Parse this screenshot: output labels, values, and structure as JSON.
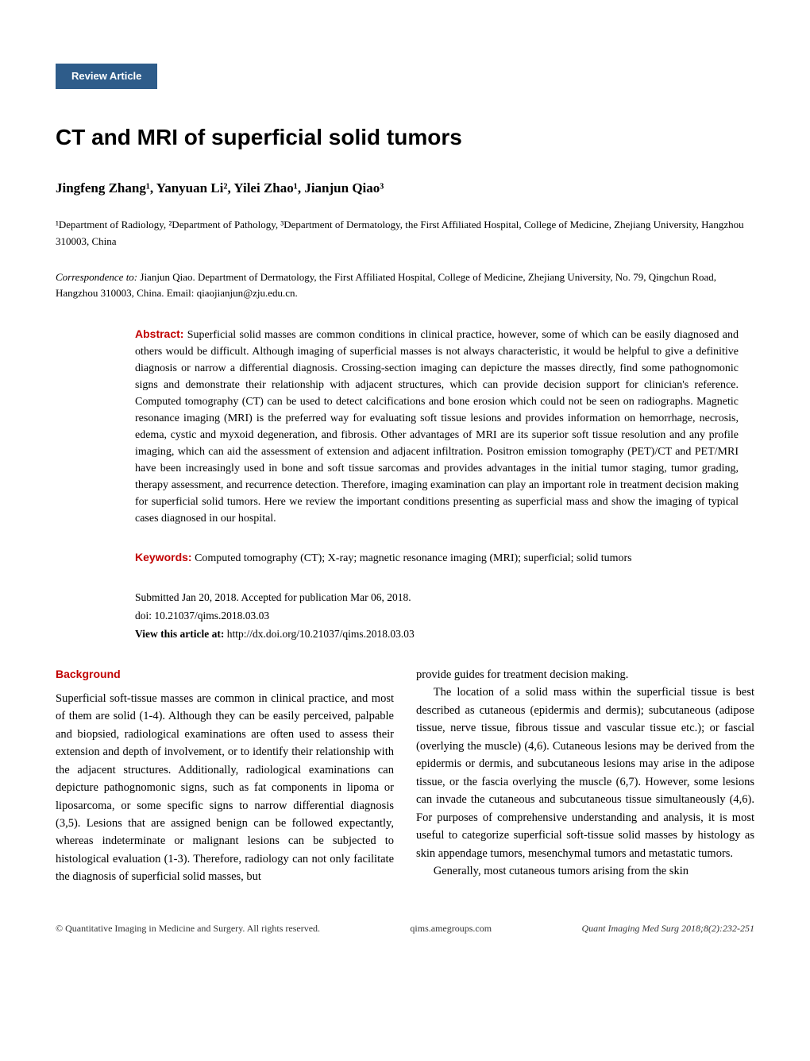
{
  "badge": "Review Article",
  "title": "CT and MRI of superficial solid tumors",
  "authors_html": "Jingfeng Zhang¹, Yanyuan Li², Yilei Zhao¹, Jianjun Qiao³",
  "affiliations": "¹Department of Radiology, ²Department of Pathology, ³Department of Dermatology, the First Affiliated Hospital, College of Medicine, Zhejiang University, Hangzhou 310003, China",
  "correspondence_label": "Correspondence to:",
  "correspondence_text": " Jianjun Qiao. Department of Dermatology, the First Affiliated Hospital, College of Medicine, Zhejiang University, No. 79, Qingchun Road, Hangzhou 310003, China. Email: qiaojianjun@zju.edu.cn.",
  "abstract_label": "Abstract:",
  "abstract_text": " Superficial solid masses are common conditions in clinical practice, however, some of which can be easily diagnosed and others would be difficult. Although imaging of superficial masses is not always characteristic, it would be helpful to give a definitive diagnosis or narrow a differential diagnosis. Crossing-section imaging can depicture the masses directly, find some pathognomonic signs and demonstrate their relationship with adjacent structures, which can provide decision support for clinician's reference. Computed tomography (CT) can be used to detect calcifications and bone erosion which could not be seen on radiographs. Magnetic resonance imaging (MRI) is the preferred way for evaluating soft tissue lesions and provides information on hemorrhage, necrosis, edema, cystic and myxoid degeneration, and fibrosis. Other advantages of MRI are its superior soft tissue resolution and any profile imaging, which can aid the assessment of extension and adjacent infiltration. Positron emission tomography (PET)/CT and PET/MRI have been increasingly used in bone and soft tissue sarcomas and provides advantages in the initial tumor staging, tumor grading, therapy assessment, and recurrence detection. Therefore, imaging examination can play an important role in treatment decision making for superficial solid tumors. Here we review the important conditions presenting as superficial mass and show the imaging of typical cases diagnosed in our hospital.",
  "keywords_label": "Keywords:",
  "keywords_text": " Computed tomography (CT); X-ray; magnetic resonance imaging (MRI); superficial; solid tumors",
  "submission_line1": "Submitted Jan 20, 2018. Accepted for publication Mar 06, 2018.",
  "submission_line2": "doi: 10.21037/qims.2018.03.03",
  "view_article_label": "View this article at:",
  "view_article_url": " http://dx.doi.org/10.21037/qims.2018.03.03",
  "background_heading": "Background",
  "col1_p1": "Superficial soft-tissue masses are common in clinical practice, and most of them are solid (1-4). Although they can be easily perceived, palpable and biopsied, radiological examinations are often used to assess their extension and depth of involvement, or to identify their relationship with the adjacent structures. Additionally, radiological examinations can depicture pathognomonic signs, such as fat components in lipoma or liposarcoma, or some specific signs to narrow differential diagnosis (3,5). Lesions that are assigned benign can be followed expectantly, whereas indeterminate or malignant lesions can be subjected to histological evaluation (1-3). Therefore, radiology can not only facilitate the diagnosis of superficial solid masses, but",
  "col2_p1": "provide guides for treatment decision making.",
  "col2_p2": "The location of a solid mass within the superficial tissue is best described as cutaneous (epidermis and dermis); subcutaneous (adipose tissue, nerve tissue, fibrous tissue and vascular tissue etc.); or fascial (overlying the muscle) (4,6). Cutaneous lesions may be derived from the epidermis or dermis, and subcutaneous lesions may arise in the adipose tissue, or the fascia overlying the muscle (6,7). However, some lesions can invade the cutaneous and subcutaneous tissue simultaneously (4,6). For purposes of comprehensive understanding and analysis, it is most useful to categorize superficial soft-tissue solid masses by histology as skin appendage tumors, mesenchymal tumors and metastatic tumors.",
  "col2_p3": "Generally, most cutaneous tumors arising from the skin",
  "footer_left": "© Quantitative Imaging in Medicine and Surgery. All rights reserved.",
  "footer_center": "qims.amegroups.com",
  "footer_right": "Quant Imaging Med Surg 2018;8(2):232-251",
  "colors": {
    "badge_bg": "#2e5c8a",
    "heading_red": "#c10000",
    "text": "#000000",
    "background": "#ffffff"
  }
}
